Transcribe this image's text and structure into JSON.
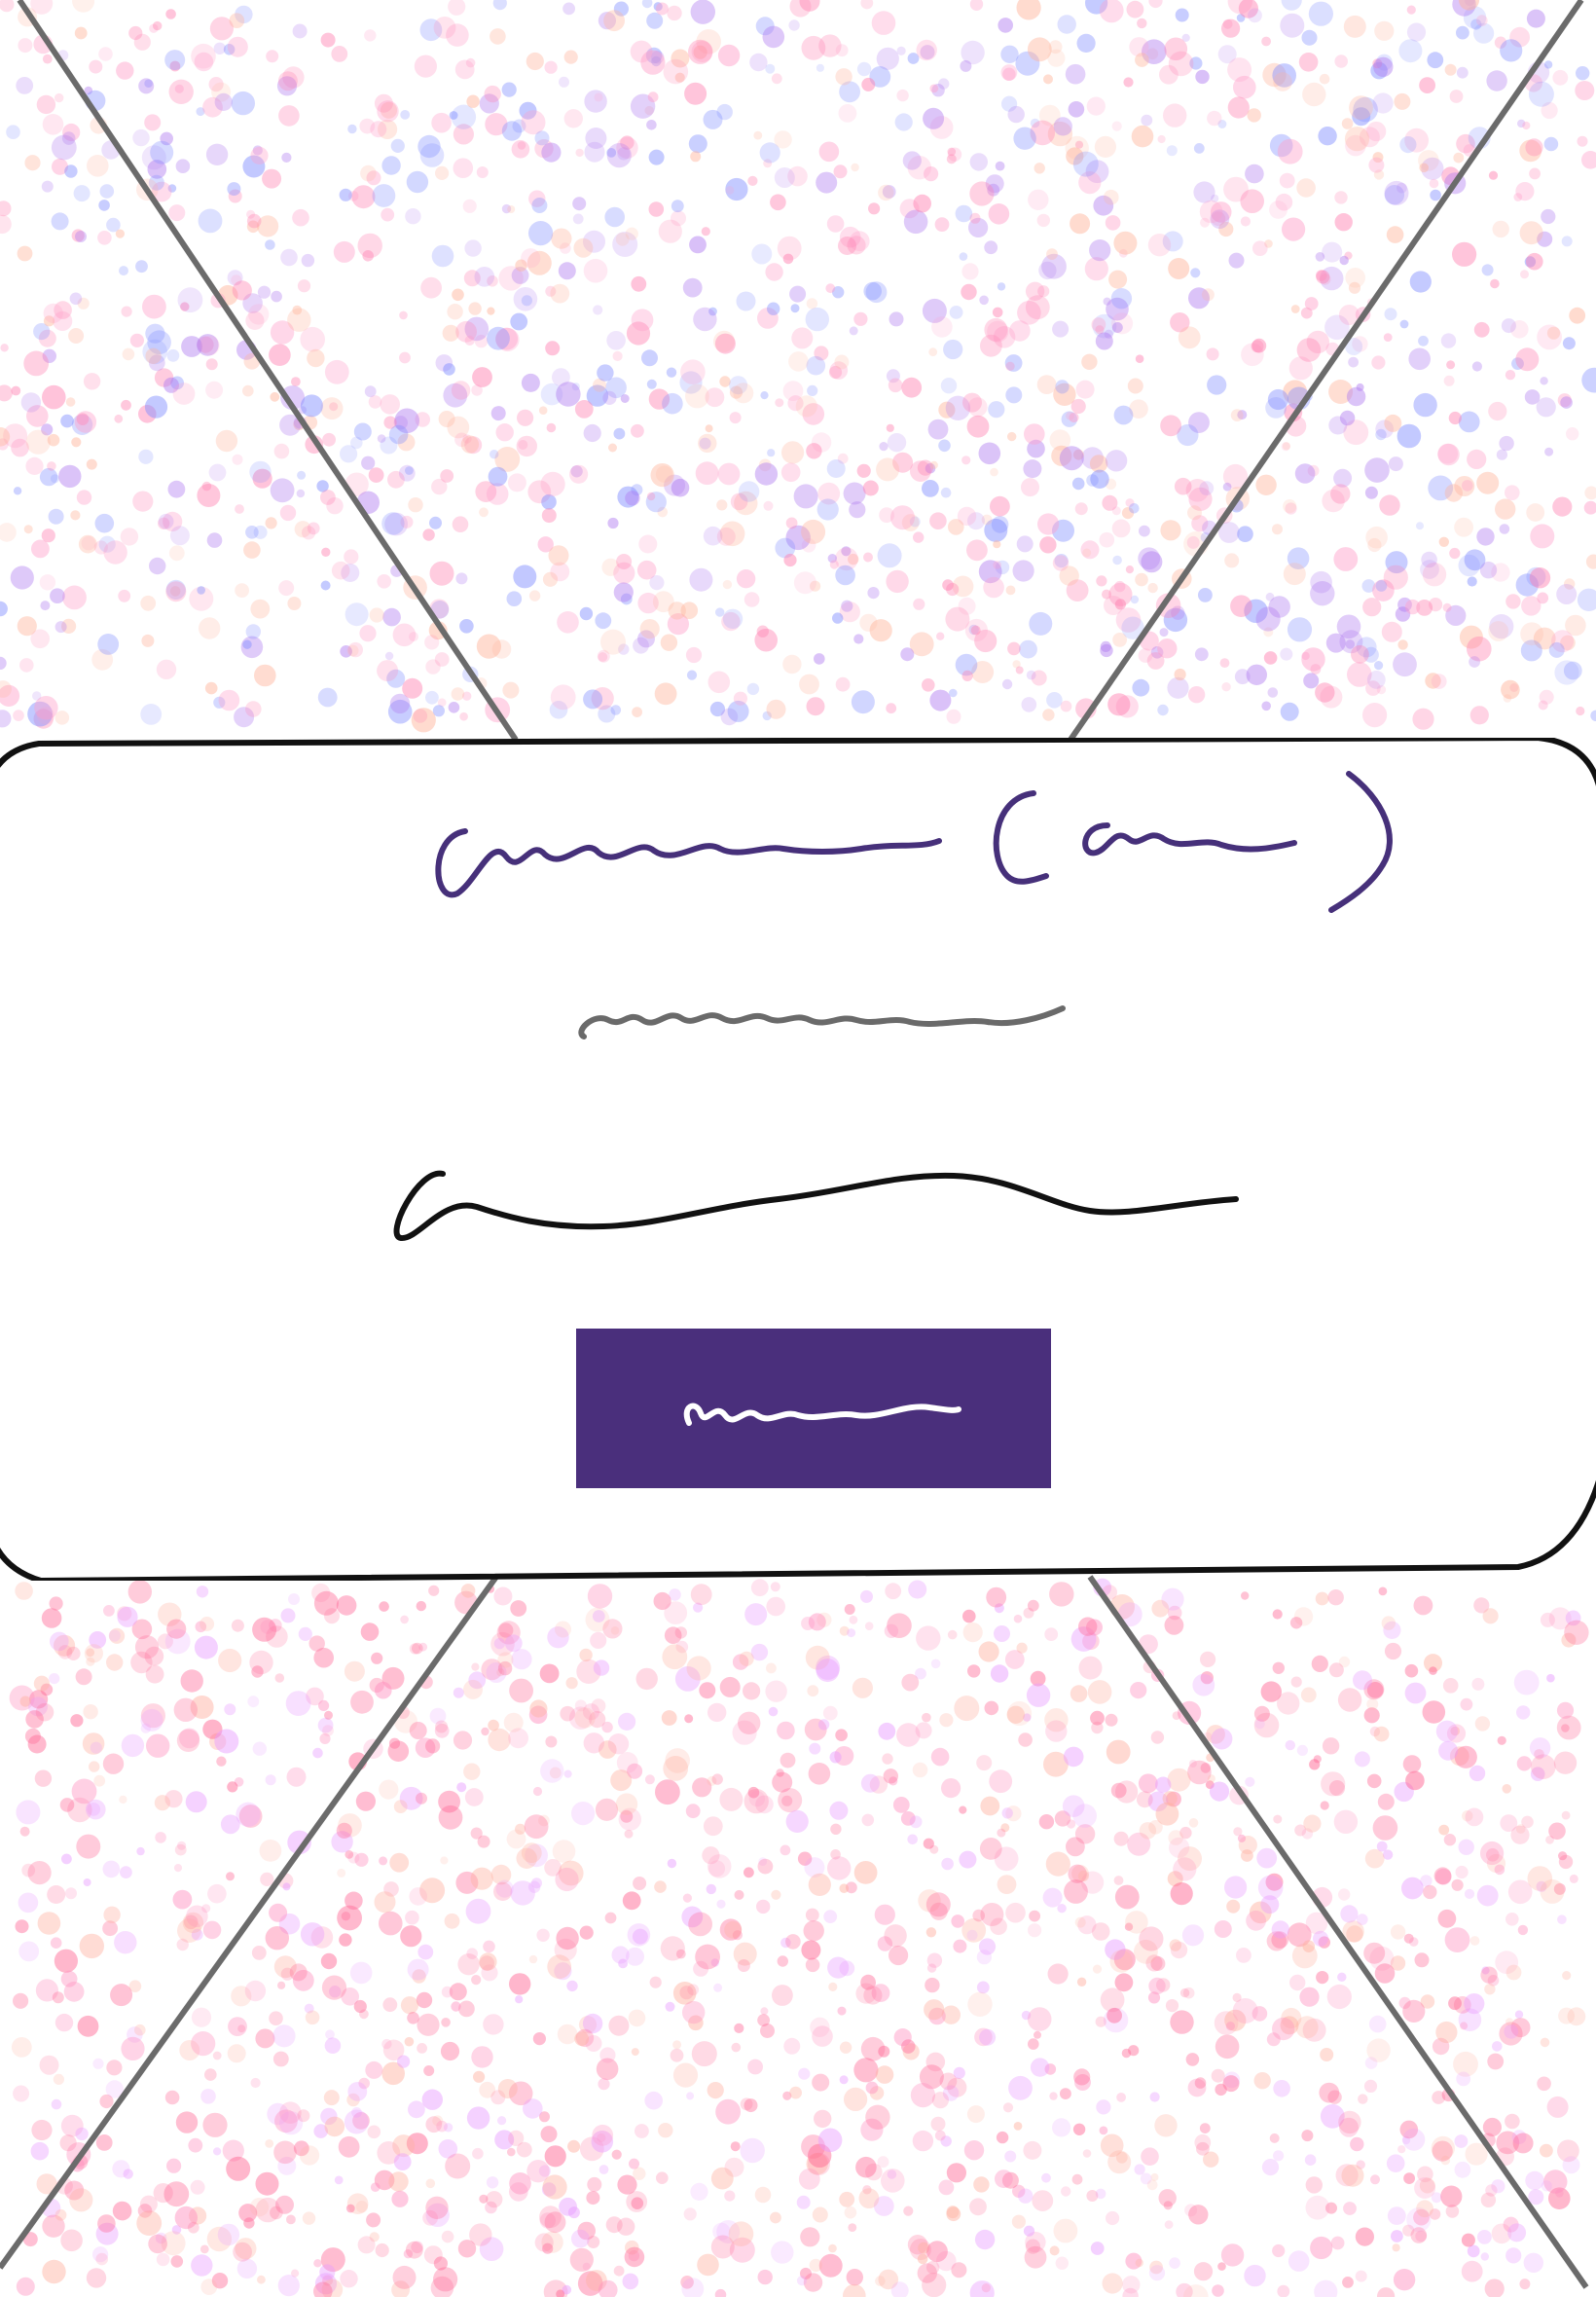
{
  "colors": {
    "background": "#ffffff",
    "card_fill": "#ffffff",
    "card_border": "#111111",
    "diagonal_lines": "#6b6b6b",
    "heading_ink": "#46307a",
    "subheading_ink": "#6a6a6a",
    "body_ink": "#111111",
    "button_fill": "#4a2f7c",
    "button_ink": "#ffffff",
    "confetti_top": [
      "#ff7fb0",
      "#b07cf0",
      "#7f8cff",
      "#ff9fc9",
      "#ffb39a"
    ],
    "confetti_bottom": [
      "#ff6f9c",
      "#ff8fbf",
      "#ffb0a0",
      "#ff5f8f",
      "#e89bff"
    ]
  },
  "card": {
    "heading": "",
    "subheading": "",
    "body": "",
    "button_label": ""
  }
}
